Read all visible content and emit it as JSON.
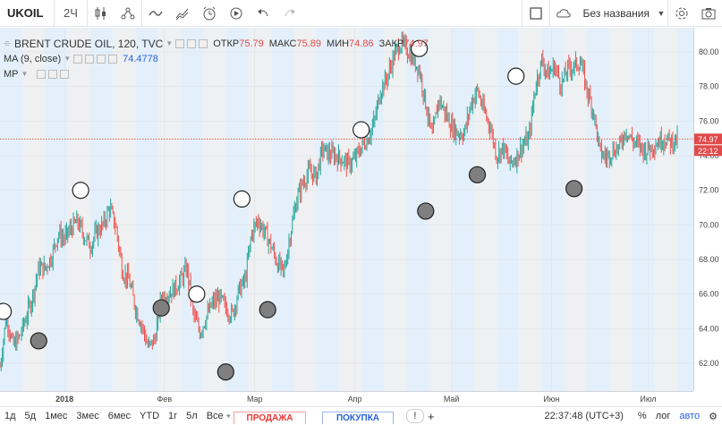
{
  "topbar": {
    "symbol": "UKOIL",
    "interval": "2Ч",
    "layout_name": "Без названия"
  },
  "legend": {
    "title": "BRENT CRUDE OIL, 120, TVC",
    "open_label": "ОТКР",
    "open_value": "75.79",
    "high_label": "МАКС",
    "high_value": "75.89",
    "low_label": "МИН",
    "low_value": "74.86",
    "close_label": "ЗАКР",
    "close_value": "74.97",
    "ma_label": "MA (9, close)",
    "ma_value": "74.4778",
    "mp_label": "MP"
  },
  "price_axis": {
    "current_price": "74.97",
    "countdown": "22:12"
  },
  "bottombar": {
    "ranges": [
      "1д",
      "5д",
      "1мес",
      "3мес",
      "6мес",
      "YTD",
      "1г",
      "5л",
      "Все"
    ],
    "sell_label": "ПРОДАЖА",
    "buy_label": "ПОКУПКА",
    "time": "22:37:48 (UTC+3)",
    "percent": "%",
    "log": "лог",
    "auto": "авто"
  },
  "colors": {
    "up": "#26a69a",
    "down": "#ef5350",
    "band_light": "#e3f0fb",
    "band_grey": "#eef0f1",
    "price_line": "#e04a4a",
    "ma_line": "#2862d8"
  },
  "chart_data": {
    "type": "line",
    "title": "BRENT CRUDE OIL, 120, TVC",
    "xlabel": "",
    "ylabel": "",
    "ylim": [
      60.4,
      81.4
    ],
    "y_ticks": [
      62,
      64,
      66,
      68,
      70,
      72,
      74,
      76,
      78,
      80
    ],
    "x_tick_labels": [
      "2018",
      "Фев",
      "Мар",
      "Апр",
      "Май",
      "Июн",
      "Июл"
    ],
    "x_tick_days": [
      0,
      31,
      59,
      90,
      120,
      151,
      181
    ],
    "x_range_days": [
      -20,
      195
    ],
    "series": [
      {
        "values_x_days": [
          -20,
          -18,
          -16,
          -14,
          -12,
          -10,
          -8,
          -6,
          -4,
          -2,
          0,
          2,
          4,
          6,
          8,
          10,
          12,
          14,
          16,
          18,
          20,
          22,
          24,
          26,
          28,
          30,
          32,
          34,
          36,
          38,
          40,
          42,
          44,
          46,
          48,
          50,
          52,
          54,
          56,
          58,
          60,
          62,
          64,
          66,
          68,
          70,
          72,
          74,
          76,
          78,
          80,
          82,
          84,
          86,
          88,
          90,
          92,
          94,
          96,
          98,
          100,
          102,
          104,
          106,
          108,
          110,
          112,
          114,
          116,
          118,
          120,
          122,
          124,
          126,
          128,
          130,
          132,
          134,
          136,
          138,
          140,
          142,
          144,
          146,
          148,
          150,
          152,
          154,
          156,
          158,
          160,
          162,
          164,
          166,
          168,
          170,
          172,
          174,
          176,
          178,
          180,
          182,
          184,
          186,
          188,
          190,
          192,
          194
        ],
        "values_y": [
          61.8,
          64.8,
          63.0,
          63.5,
          64.6,
          65.8,
          67.5,
          67.5,
          68.2,
          69.5,
          69.2,
          69.8,
          70.2,
          69.4,
          68.8,
          69.6,
          70.0,
          71.0,
          69.8,
          67.3,
          66.8,
          65.2,
          64.2,
          62.9,
          63.4,
          65.8,
          66.0,
          66.3,
          66.8,
          67.5,
          64.8,
          63.8,
          64.7,
          65.5,
          65.8,
          65.2,
          64.8,
          66.2,
          66.8,
          69.5,
          70.3,
          69.6,
          68.8,
          67.8,
          67.2,
          69.5,
          71.5,
          72.5,
          73.1,
          72.8,
          74.4,
          74.1,
          74.0,
          73.8,
          73.5,
          73.8,
          74.5,
          75.0,
          75.9,
          77.8,
          78.5,
          79.7,
          80.5,
          80.2,
          79.6,
          79.0,
          77.0,
          75.0,
          77.3,
          76.5,
          75.7,
          75.3,
          75.3,
          77.0,
          77.8,
          76.6,
          75.7,
          74.0,
          74.5,
          73.5,
          73.9,
          74.6,
          75.0,
          78.0,
          79.5,
          78.7,
          79.2,
          78.1,
          79.0,
          79.2,
          79.4,
          77.8,
          76.6,
          74.2,
          73.9,
          74.3,
          74.5,
          75.5,
          74.9,
          74.6,
          74.3,
          74.5,
          74.8,
          75.0,
          74.8,
          74.97,
          74.97,
          74.97
        ]
      }
    ],
    "markers_open_days": [
      -19,
      5,
      41,
      55,
      92,
      110,
      140
    ],
    "markers_open_y": [
      65.0,
      72.0,
      66.0,
      71.5,
      75.5,
      80.2,
      78.6
    ],
    "markers_filled_days": [
      -8,
      30,
      50,
      63,
      112,
      128,
      158
    ],
    "markers_filled_y": [
      63.3,
      65.2,
      61.5,
      65.1,
      70.8,
      72.9,
      72.1
    ],
    "background_bands": "alternating weekly bands",
    "last_price": 74.97,
    "grid": true
  }
}
